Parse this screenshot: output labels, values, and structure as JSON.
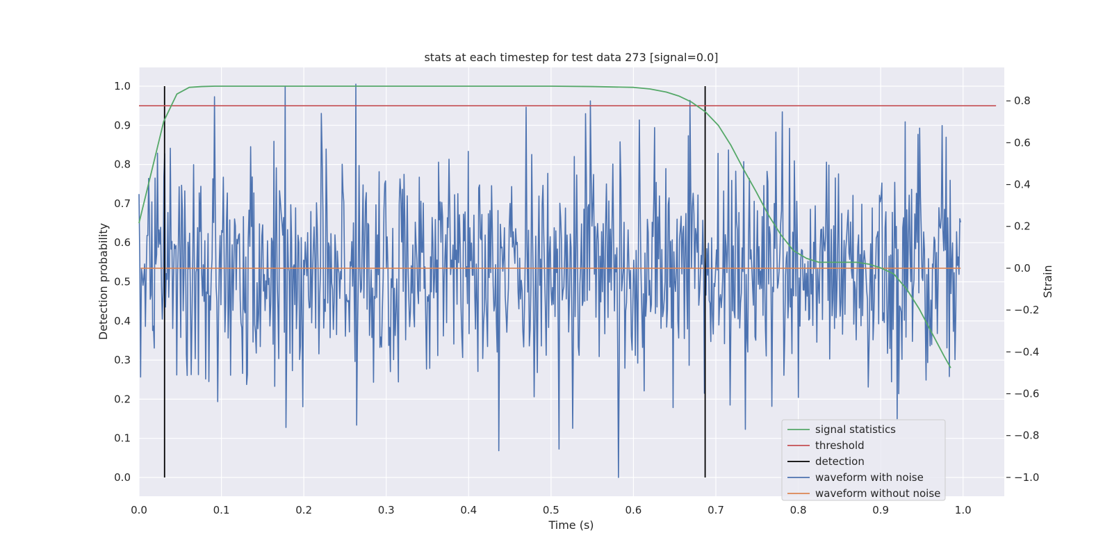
{
  "chart_data": {
    "type": "line",
    "title": "stats at each timestep for test data 273 [signal=0.0]",
    "xlabel": "Time (s)",
    "ylabel_left": "Detection probability",
    "ylabel_right": "Strain",
    "xlim": [
      0.0,
      1.05
    ],
    "ylim_left": [
      -0.048,
      1.048
    ],
    "ylim_right": [
      -1.09,
      0.96
    ],
    "x_ticks": [
      0.0,
      0.1,
      0.2,
      0.3,
      0.4,
      0.5,
      0.6,
      0.7,
      0.8,
      0.9,
      1.0
    ],
    "x_tick_labels": [
      "0.0",
      "0.1",
      "0.2",
      "0.3",
      "0.4",
      "0.5",
      "0.6",
      "0.7",
      "0.8",
      "0.9",
      "1.0"
    ],
    "y_left_ticks": [
      0.0,
      0.1,
      0.2,
      0.3,
      0.4,
      0.5,
      0.6,
      0.7,
      0.8,
      0.9,
      1.0
    ],
    "y_left_tick_labels": [
      "0.0",
      "0.1",
      "0.2",
      "0.3",
      "0.4",
      "0.5",
      "0.6",
      "0.7",
      "0.8",
      "0.9",
      "1.0"
    ],
    "y_right_ticks": [
      -1.0,
      -0.8,
      -0.6,
      -0.4,
      -0.2,
      0.0,
      0.2,
      0.4,
      0.6,
      0.8
    ],
    "y_right_tick_labels": [
      "−1.0",
      "−0.8",
      "−0.6",
      "−0.4",
      "−0.2",
      "0.0",
      "0.2",
      "0.4",
      "0.6",
      "0.8"
    ],
    "grid": true,
    "legend_position": "lower-right",
    "background": "#eaeaf2",
    "series": [
      {
        "name": "signal statistics",
        "axis": "left",
        "color": "#55a868",
        "x": [
          0.0,
          0.015,
          0.03,
          0.046,
          0.061,
          0.076,
          0.092,
          0.2,
          0.4,
          0.5,
          0.55,
          0.6,
          0.62,
          0.64,
          0.655,
          0.67,
          0.687,
          0.703,
          0.718,
          0.733,
          0.749,
          0.764,
          0.779,
          0.794,
          0.81,
          0.825,
          0.84,
          0.855,
          0.871,
          0.886,
          0.901,
          0.916,
          0.932,
          0.947,
          0.962,
          0.977,
          0.985
        ],
        "y": [
          0.65,
          0.78,
          0.91,
          0.98,
          0.997,
          0.999,
          1.0,
          1.0,
          1.0,
          1.0,
          0.999,
          0.997,
          0.993,
          0.985,
          0.975,
          0.96,
          0.935,
          0.9,
          0.85,
          0.79,
          0.73,
          0.67,
          0.62,
          0.58,
          0.56,
          0.55,
          0.55,
          0.55,
          0.55,
          0.545,
          0.535,
          0.52,
          0.48,
          0.43,
          0.37,
          0.31,
          0.28
        ]
      },
      {
        "name": "threshold",
        "axis": "left",
        "color": "#c44e52",
        "x": [
          0.0,
          1.04
        ],
        "y": [
          0.95,
          0.95
        ]
      },
      {
        "name": "detection",
        "axis": "left",
        "color": "#000000",
        "segments": [
          {
            "x": 0.031,
            "y0": 0.0,
            "y1": 1.0
          },
          {
            "x": 0.687,
            "y0": 0.0,
            "y1": 1.0
          }
        ]
      },
      {
        "name": "waveform with noise",
        "axis": "right",
        "color": "#4c72b0",
        "x_start": 0.0,
        "x_end": 0.997,
        "n_points": 1024,
        "std": 0.25,
        "y_range": [
          -1.0,
          0.88
        ],
        "highlight_points": [
          {
            "x": 0.002,
            "y": -0.52
          },
          {
            "x": 0.022,
            "y": 0.55
          },
          {
            "x": 0.092,
            "y": 0.82
          },
          {
            "x": 0.177,
            "y": 0.87
          },
          {
            "x": 0.227,
            "y": 0.57
          },
          {
            "x": 0.263,
            "y": 0.88
          },
          {
            "x": 0.264,
            "y": -0.75
          },
          {
            "x": 0.47,
            "y": 0.77
          },
          {
            "x": 0.548,
            "y": 0.8
          },
          {
            "x": 0.582,
            "y": -1.0
          },
          {
            "x": 0.736,
            "y": -0.77
          },
          {
            "x": 0.93,
            "y": 0.7
          },
          {
            "x": 0.947,
            "y": 0.67
          }
        ]
      },
      {
        "name": "waveform without noise",
        "axis": "right",
        "color": "#dd8452",
        "x": [
          0.002,
          0.997
        ],
        "y": [
          0.0,
          0.0
        ]
      }
    ],
    "legend": [
      "signal statistics",
      "threshold",
      "detection",
      "waveform with noise",
      "waveform without noise"
    ]
  }
}
